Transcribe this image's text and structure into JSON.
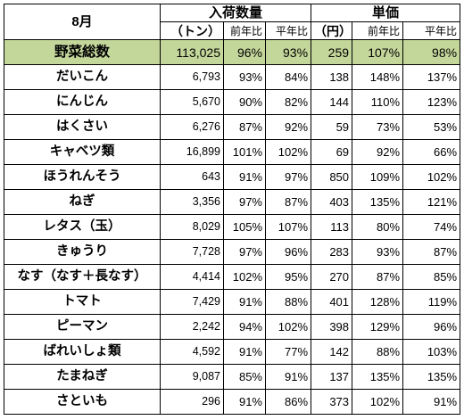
{
  "header": {
    "month": "8月",
    "group_volume": "入荷数量",
    "group_price": "単価",
    "unit_volume": "（トン）",
    "unit_price": "（円）",
    "yoy": "前年比",
    "vs_avg": "平年比"
  },
  "total": {
    "name": "野菜総数",
    "qty": "113,025",
    "qty_yoy": "96%",
    "qty_avg": "93%",
    "price": "259",
    "price_yoy": "107%",
    "price_avg": "98%"
  },
  "rows": [
    {
      "name": "だいこん",
      "qty": "6,793",
      "qty_yoy": "93%",
      "qty_avg": "84%",
      "price": "138",
      "price_yoy": "148%",
      "price_avg": "137%"
    },
    {
      "name": "にんじん",
      "qty": "5,670",
      "qty_yoy": "90%",
      "qty_avg": "82%",
      "price": "144",
      "price_yoy": "110%",
      "price_avg": "123%"
    },
    {
      "name": "はくさい",
      "qty": "6,276",
      "qty_yoy": "87%",
      "qty_avg": "92%",
      "price": "59",
      "price_yoy": "73%",
      "price_avg": "53%"
    },
    {
      "name": "キャベツ類",
      "qty": "16,899",
      "qty_yoy": "101%",
      "qty_avg": "102%",
      "price": "69",
      "price_yoy": "92%",
      "price_avg": "66%"
    },
    {
      "name": "ほうれんそう",
      "qty": "643",
      "qty_yoy": "91%",
      "qty_avg": "97%",
      "price": "850",
      "price_yoy": "109%",
      "price_avg": "102%"
    },
    {
      "name": "ねぎ",
      "qty": "3,356",
      "qty_yoy": "97%",
      "qty_avg": "87%",
      "price": "403",
      "price_yoy": "135%",
      "price_avg": "121%"
    },
    {
      "name": "レタス（玉）",
      "qty": "8,029",
      "qty_yoy": "105%",
      "qty_avg": "107%",
      "price": "113",
      "price_yoy": "80%",
      "price_avg": "74%"
    },
    {
      "name": "きゅうり",
      "qty": "7,728",
      "qty_yoy": "97%",
      "qty_avg": "96%",
      "price": "283",
      "price_yoy": "93%",
      "price_avg": "87%"
    },
    {
      "name": "なす（なす＋長なす）",
      "qty": "4,414",
      "qty_yoy": "102%",
      "qty_avg": "95%",
      "price": "270",
      "price_yoy": "87%",
      "price_avg": "85%"
    },
    {
      "name": "トマト",
      "qty": "7,429",
      "qty_yoy": "91%",
      "qty_avg": "88%",
      "price": "401",
      "price_yoy": "128%",
      "price_avg": "119%"
    },
    {
      "name": "ピーマン",
      "qty": "2,242",
      "qty_yoy": "94%",
      "qty_avg": "102%",
      "price": "398",
      "price_yoy": "129%",
      "price_avg": "96%"
    },
    {
      "name": "ばれいしょ類",
      "qty": "4,592",
      "qty_yoy": "91%",
      "qty_avg": "77%",
      "price": "142",
      "price_yoy": "88%",
      "price_avg": "103%"
    },
    {
      "name": "たまねぎ",
      "qty": "9,087",
      "qty_yoy": "85%",
      "qty_avg": "91%",
      "price": "137",
      "price_yoy": "135%",
      "price_avg": "135%"
    },
    {
      "name": "さといも",
      "qty": "296",
      "qty_yoy": "91%",
      "qty_avg": "86%",
      "price": "373",
      "price_yoy": "102%",
      "price_avg": "91%"
    }
  ],
  "colors": {
    "total_row_bg": "#c4d79b",
    "border": "#000000"
  }
}
